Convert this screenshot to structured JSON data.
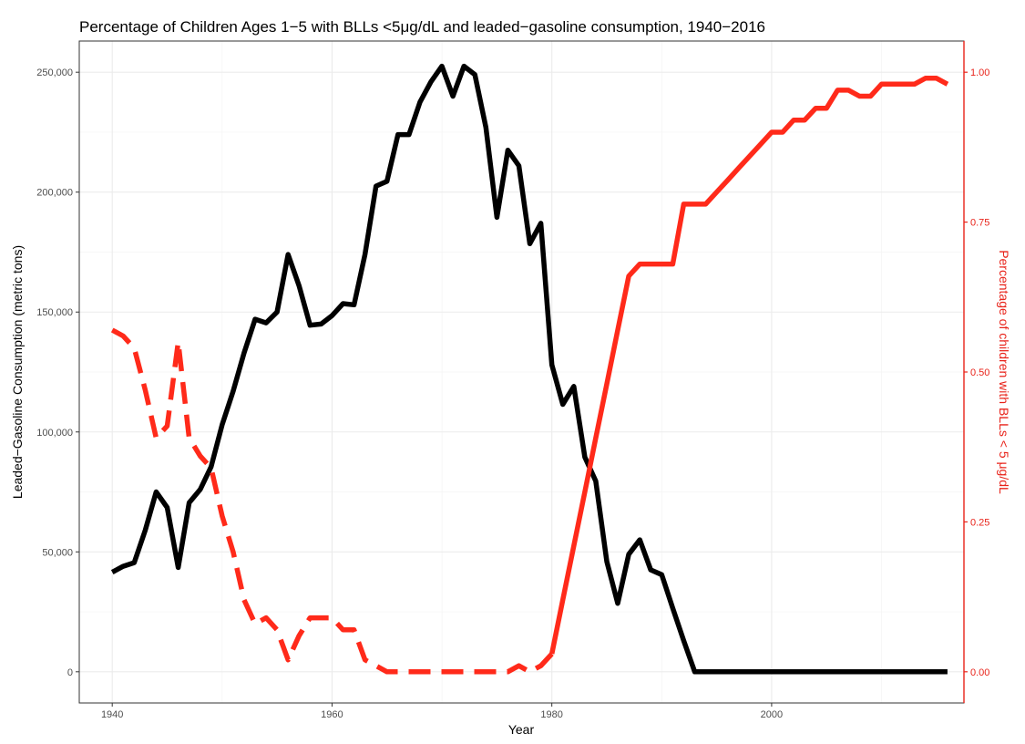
{
  "chart_data": {
    "type": "line",
    "title": "Percentage of Children Ages 1−5 with BLLs <5μg/dL and leaded−gasoline consumption, 1940−2016",
    "xlabel": "Year",
    "ylabel_left": "Leaded−Gasoline Consumption (metric tons)",
    "ylabel_right": "Percentage of children with BLLs < 5 μg/dL",
    "xlim": [
      1937,
      2017.5
    ],
    "ylim_left": [
      -13000,
      263000
    ],
    "ylim_right": [
      -0.052,
      1.052
    ],
    "x_ticks": [
      1940,
      1960,
      1980,
      2000
    ],
    "x_tick_labels": [
      "1940",
      "1960",
      "1980",
      "2000"
    ],
    "y_left_ticks": [
      0,
      50000,
      100000,
      150000,
      200000,
      250000
    ],
    "y_left_tick_labels": [
      "0",
      "50,000",
      "100,000",
      "150,000",
      "200,000",
      "250,000"
    ],
    "y_right_ticks": [
      0,
      0.25,
      0.5,
      0.75,
      1.0
    ],
    "y_right_tick_labels": [
      "0.00",
      "0.25",
      "0.50",
      "0.75",
      "1.00"
    ],
    "grid": true,
    "colors": {
      "gasoline": "#000000",
      "bll": "#ff2a1a",
      "right_axis": "#e8231a",
      "tick_text": "#4d4d4d"
    },
    "series": [
      {
        "axis": "left",
        "style": "solid",
        "x": [
          1940,
          1941,
          1942,
          1943,
          1944,
          1945,
          1946,
          1947,
          1948,
          1949,
          1950,
          1951,
          1952,
          1953,
          1954,
          1955,
          1956,
          1957,
          1958,
          1959,
          1960,
          1961,
          1962,
          1963,
          1964,
          1965,
          1966,
          1967,
          1968,
          1969,
          1970,
          1971,
          1972,
          1973,
          1974,
          1975,
          1976,
          1977,
          1978,
          1979,
          1980,
          1981,
          1982,
          1983,
          1984,
          1985,
          1986,
          1987,
          1988,
          1989,
          1990,
          1991,
          1992,
          1993,
          1994,
          1995,
          1996,
          1997,
          1998,
          1999,
          2000,
          2001,
          2002,
          2003,
          2004,
          2005,
          2006,
          2007,
          2008,
          2009,
          2010,
          2011,
          2012,
          2013,
          2014,
          2015,
          2016
        ],
        "values": [
          41500,
          44000,
          45500,
          59000,
          75000,
          68500,
          43500,
          70500,
          76000,
          85500,
          103000,
          117000,
          133000,
          147000,
          145500,
          150000,
          174000,
          161000,
          144500,
          145000,
          148500,
          153500,
          153000,
          174000,
          202500,
          204500,
          224000,
          224000,
          237500,
          246000,
          252500,
          240000,
          252500,
          249000,
          227000,
          189500,
          217500,
          211000,
          178500,
          187000,
          128000,
          111500,
          119000,
          89500,
          79500,
          46000,
          28500,
          49000,
          55000,
          42500,
          40500,
          26500,
          13000,
          0,
          0,
          0,
          0,
          0,
          0,
          0,
          0,
          0,
          0,
          0,
          0,
          0,
          0,
          0,
          0,
          0,
          0,
          0,
          0,
          0,
          0,
          0,
          0
        ]
      },
      {
        "axis": "right",
        "style": "dashed",
        "x": [
          1940,
          1941,
          1942,
          1943,
          1944,
          1945,
          1946,
          1947,
          1948,
          1949,
          1950,
          1951,
          1952,
          1953,
          1954,
          1955,
          1956,
          1957,
          1958,
          1959,
          1960,
          1961,
          1962,
          1963,
          1964,
          1965,
          1966,
          1967,
          1968,
          1969,
          1970,
          1971,
          1972,
          1973,
          1974,
          1975,
          1976,
          1977,
          1978,
          1979,
          1980
        ],
        "values": [
          0.57,
          0.56,
          0.54,
          0.47,
          0.39,
          0.41,
          0.55,
          0.39,
          0.36,
          0.34,
          0.26,
          0.2,
          0.12,
          0.08,
          0.09,
          0.07,
          0.02,
          0.06,
          0.09,
          0.09,
          0.09,
          0.07,
          0.07,
          0.02,
          0.01,
          0,
          0,
          0,
          0,
          0,
          0,
          0,
          0,
          0,
          0,
          0,
          0,
          0.01,
          0,
          0.01,
          0.03
        ]
      },
      {
        "axis": "right",
        "style": "solid",
        "x": [
          1980,
          1981,
          1982,
          1983,
          1984,
          1985,
          1986,
          1987,
          1988,
          1989,
          1990,
          1991,
          1992,
          1993,
          1994,
          1995,
          1996,
          1997,
          1998,
          1999,
          2000,
          2001,
          2002,
          2003,
          2004,
          2005,
          2006,
          2007,
          2008,
          2009,
          2010,
          2011,
          2012,
          2013,
          2014,
          2015,
          2016
        ],
        "values": [
          0.03,
          0.12,
          0.21,
          0.3,
          0.39,
          0.48,
          0.57,
          0.66,
          0.68,
          0.68,
          0.68,
          0.68,
          0.78,
          0.78,
          0.78,
          0.8,
          0.82,
          0.84,
          0.86,
          0.88,
          0.9,
          0.9,
          0.92,
          0.92,
          0.94,
          0.94,
          0.97,
          0.97,
          0.96,
          0.96,
          0.98,
          0.98,
          0.98,
          0.98,
          0.99,
          0.99,
          0.98
        ]
      }
    ]
  }
}
